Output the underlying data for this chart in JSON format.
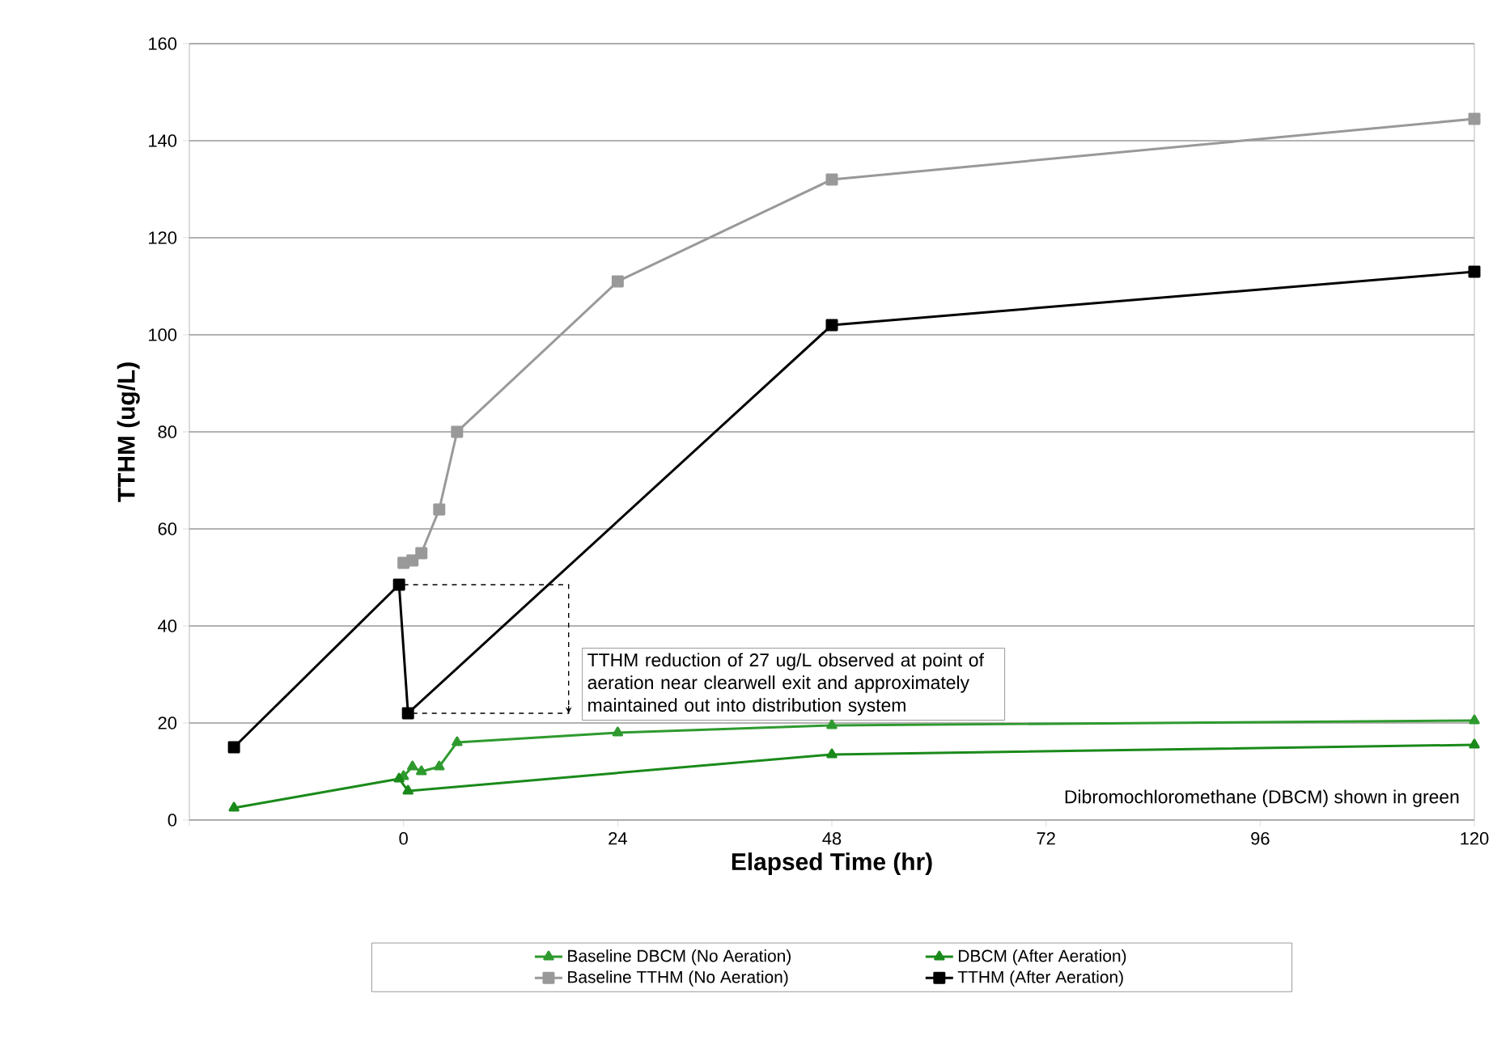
{
  "chart_data": {
    "type": "line",
    "xlabel": "Elapsed Time (hr)",
    "ylabel": "TTHM (ug/L)",
    "xlim": [
      -24,
      120
    ],
    "xticks": [
      {
        "value": -24,
        "label": null
      },
      0,
      24,
      48,
      72,
      96,
      120
    ],
    "ylim": [
      0,
      160
    ],
    "yticks": [
      0,
      20,
      40,
      60,
      80,
      100,
      120,
      140,
      160
    ],
    "grid": "y",
    "legend": "bottom",
    "series": [
      {
        "name": "Baseline DBCM (No Aeration)",
        "color": "#2e9a2e",
        "marker": "triangle",
        "x": [
          0,
          1,
          2,
          4,
          6,
          24,
          48,
          120
        ],
        "values": [
          9,
          11,
          10,
          11,
          16,
          18,
          19.5,
          20.5
        ]
      },
      {
        "name": "DBCM (After Aeration)",
        "color": "#1a8a1a",
        "marker": "triangle",
        "x": [
          -19,
          -0.5,
          0.5,
          48,
          120
        ],
        "values": [
          2.5,
          8.5,
          6,
          13.5,
          15.5
        ]
      },
      {
        "name": "Baseline TTHM (No Aeration)",
        "color": "#999999",
        "marker": "square",
        "x": [
          0,
          1,
          2,
          4,
          6,
          24,
          48,
          120
        ],
        "values": [
          53,
          53.5,
          55,
          64,
          80,
          111,
          132,
          144.5
        ]
      },
      {
        "name": "TTHM (After Aeration)",
        "color": "#000000",
        "marker": "square",
        "x": [
          -19,
          -0.5,
          0.5,
          48,
          120
        ],
        "values": [
          15,
          48.5,
          22,
          102,
          113
        ]
      }
    ],
    "annotations": [
      {
        "text": "TTHM reduction of 27 ug/L observed at point of aeration near clearwell exit and approximately maintained out into distribution system",
        "x": 18.5,
        "y": 22
      },
      "Dibromochloromethane (DBCM) shown in green"
    ]
  }
}
